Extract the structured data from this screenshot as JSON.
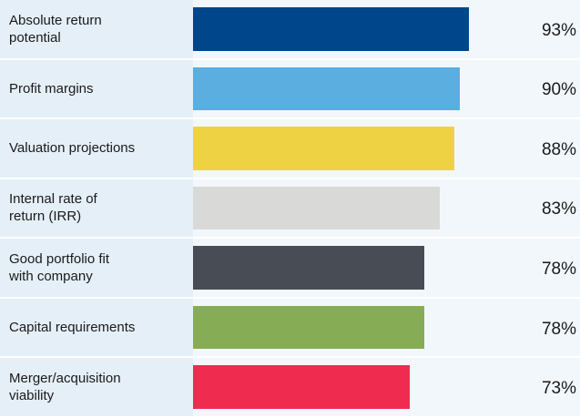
{
  "chart_data": {
    "type": "bar",
    "categories": [
      "Absolute return\npotential",
      "Profit margins",
      "Valuation projections",
      "Internal rate of\nreturn (IRR)",
      "Good portfolio fit\nwith company",
      "Capital requirements",
      "Merger/acquisition\nviability"
    ],
    "values": [
      93,
      90,
      88,
      83,
      78,
      78,
      73
    ],
    "value_labels": [
      "93%",
      "90%",
      "88%",
      "83%",
      "78%",
      "78%",
      "73%"
    ],
    "colors": [
      "#00468b",
      "#5aaee0",
      "#efd243",
      "#d9d9d7",
      "#484c55",
      "#86ad56",
      "#ef2b50"
    ],
    "xlim": [
      0,
      100
    ]
  }
}
